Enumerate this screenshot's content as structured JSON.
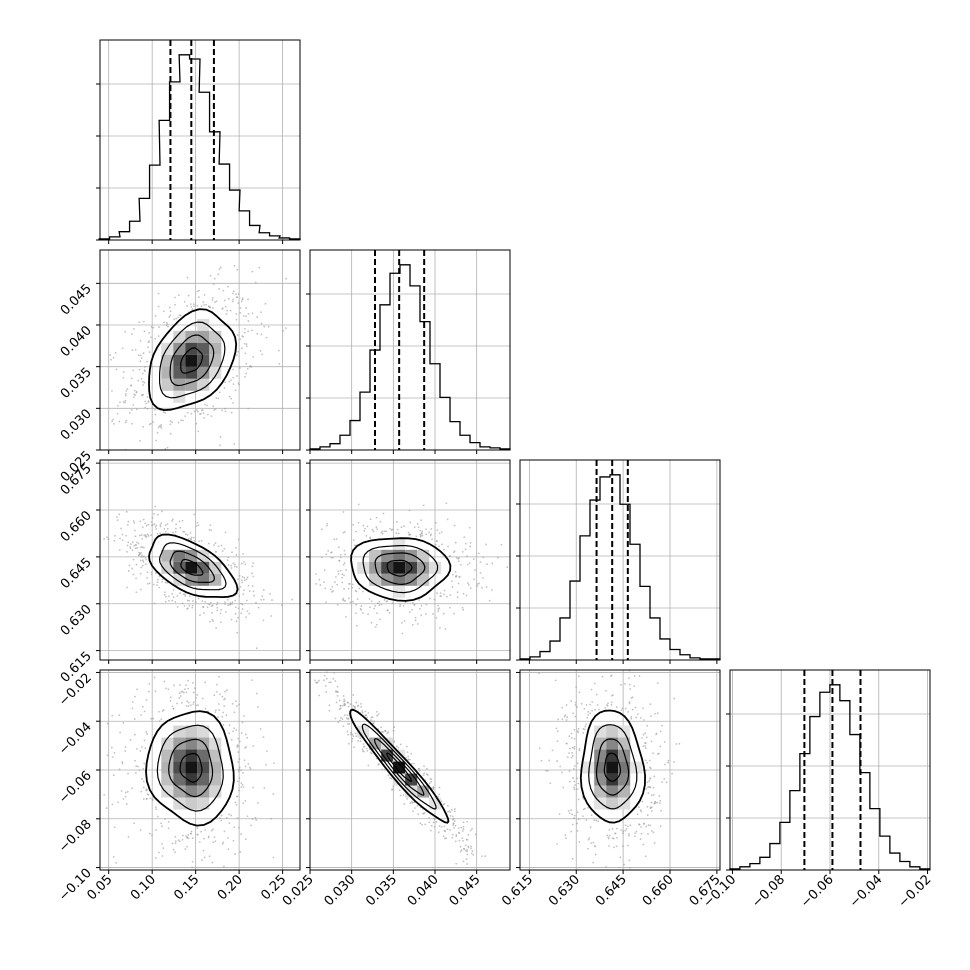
{
  "chart_data": {
    "type": "corner",
    "title": "",
    "grid": true,
    "colors": {
      "line": "#000000",
      "grid": "#b0b0b0",
      "scatter": "#9a9a9a",
      "density_max": "#000000",
      "density_min": "#ffffff"
    },
    "parameters": [
      {
        "label": "",
        "median": 0.145,
        "quantiles": [
          0.121,
          0.145,
          0.171
        ],
        "range": [
          0.04,
          0.27
        ],
        "ticks": [
          "0.05",
          "0.10",
          "0.15",
          "0.20",
          "0.25"
        ],
        "tick_values": [
          0.05,
          0.1,
          0.15,
          0.2,
          0.25
        ],
        "hist_x": [
          0.045,
          0.057,
          0.068,
          0.08,
          0.091,
          0.103,
          0.114,
          0.126,
          0.137,
          0.149,
          0.16,
          0.172,
          0.183,
          0.195,
          0.206,
          0.218,
          0.229,
          0.241,
          0.252,
          0.264
        ],
        "hist_y": [
          1,
          3,
          8,
          18,
          40,
          72,
          115,
          152,
          178,
          174,
          142,
          104,
          73,
          48,
          28,
          14,
          7,
          4,
          2,
          1
        ]
      },
      {
        "label": "",
        "median": 0.0357,
        "quantiles": [
          0.0328,
          0.0357,
          0.0387
        ],
        "range": [
          0.025,
          0.049
        ],
        "ticks": [
          "0.025",
          "0.030",
          "0.035",
          "0.040",
          "0.045"
        ],
        "tick_values": [
          0.025,
          0.03,
          0.035,
          0.04,
          0.045
        ],
        "hist_x": [
          0.0256,
          0.0268,
          0.028,
          0.0292,
          0.0304,
          0.0316,
          0.0328,
          0.034,
          0.0352,
          0.0364,
          0.0376,
          0.0388,
          0.04,
          0.0412,
          0.0424,
          0.0436,
          0.0448,
          0.046,
          0.0472,
          0.0484
        ],
        "hist_y": [
          1,
          3,
          6,
          14,
          28,
          55,
          95,
          138,
          168,
          176,
          156,
          122,
          82,
          50,
          27,
          14,
          7,
          3,
          2,
          1
        ]
      },
      {
        "label": "",
        "median": 0.6415,
        "quantiles": [
          0.6365,
          0.6415,
          0.6465
        ],
        "range": [
          0.612,
          0.676
        ],
        "ticks": [
          "0.615",
          "0.630",
          "0.645",
          "0.660",
          "0.675"
        ],
        "tick_values": [
          0.615,
          0.63,
          0.645,
          0.66,
          0.675
        ],
        "hist_x": [
          0.6136,
          0.6168,
          0.62,
          0.6232,
          0.6264,
          0.6296,
          0.6328,
          0.636,
          0.6392,
          0.6424,
          0.6456,
          0.6488,
          0.652,
          0.6552,
          0.6584,
          0.6616,
          0.6648,
          0.668,
          0.6712,
          0.6744
        ],
        "hist_y": [
          1,
          3,
          8,
          18,
          40,
          75,
          118,
          152,
          174,
          176,
          148,
          110,
          70,
          40,
          20,
          10,
          5,
          2,
          1,
          1
        ]
      },
      {
        "label": "",
        "median": -0.059,
        "quantiles": [
          -0.0705,
          -0.059,
          -0.0475
        ],
        "range": [
          -0.101,
          -0.019
        ],
        "ticks": [
          "−0.10",
          "−0.08",
          "−0.06",
          "−0.04",
          "−0.02"
        ],
        "tick_values": [
          -0.1,
          -0.08,
          -0.06,
          -0.04,
          -0.02
        ],
        "hist_x": [
          -0.099,
          -0.0949,
          -0.0908,
          -0.0867,
          -0.0826,
          -0.0785,
          -0.0744,
          -0.0703,
          -0.0662,
          -0.0621,
          -0.058,
          -0.0539,
          -0.0498,
          -0.0457,
          -0.0416,
          -0.0375,
          -0.0334,
          -0.0293,
          -0.0252,
          -0.0211
        ],
        "hist_y": [
          1,
          3,
          6,
          12,
          25,
          45,
          75,
          110,
          145,
          168,
          175,
          160,
          128,
          92,
          58,
          32,
          16,
          8,
          3,
          1
        ]
      }
    ],
    "correlations": {
      "1-0": 0.35,
      "2-0": -0.55,
      "2-1": -0.05,
      "3-0": -0.05,
      "3-1": -0.96,
      "3-2": -0.05
    }
  }
}
